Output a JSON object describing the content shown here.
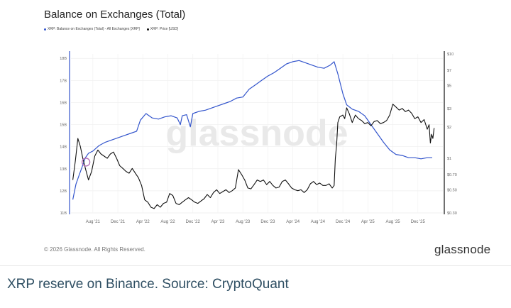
{
  "chart_data": {
    "type": "line",
    "title": "Balance on Exchanges (Total)",
    "watermark": "glassnode",
    "legend": [
      {
        "label": "XRP: Balance on Exchanges (Total) - All Exchanges [XRP]",
        "color": "#3355cc"
      },
      {
        "label": "XRP: Price [USD]",
        "color": "#111111"
      }
    ],
    "x_ticks": [
      "Aug '21",
      "Dec '21",
      "Apr '22",
      "Aug '22",
      "Dec '22",
      "Apr '23",
      "Aug '23",
      "Dec '23",
      "Apr '24",
      "Aug '24",
      "Dec '24",
      "Apr '25",
      "Aug '25",
      "Dec '25"
    ],
    "x_tick_months": [
      19,
      23,
      27,
      31,
      35,
      39,
      43,
      47,
      51,
      55,
      59,
      63,
      67,
      71
    ],
    "x_range_months": [
      15.5,
      75
    ],
    "y_left_ticks": [
      "18B",
      "17B",
      "16B",
      "15B",
      "14B",
      "13B",
      "12B",
      "11B"
    ],
    "y_left_values": [
      18,
      17,
      16,
      15,
      14,
      13,
      12,
      11
    ],
    "y_left_range": [
      11,
      18.2
    ],
    "y_right_ticks": [
      "$10",
      "$7",
      "$5",
      "$3",
      "$2",
      "$1",
      "$0.70",
      "$0.50",
      "$0.30"
    ],
    "y_right_values": [
      10,
      7,
      5,
      3,
      2,
      1,
      0.7,
      0.5,
      0.3
    ],
    "y_right_range": [
      0.3,
      10
    ],
    "y_right_scale": "log",
    "grid": true,
    "legend_position": "top-left",
    "series": [
      {
        "name": "XRP: Balance on Exchanges (Total) - All Exchanges [XRP]",
        "color": "#3355cc",
        "axis": "left",
        "points": [
          [
            15.8,
            11.6
          ],
          [
            16.3,
            12.3
          ],
          [
            16.8,
            12.7
          ],
          [
            17.3,
            13.1
          ],
          [
            17.8,
            13.5
          ],
          [
            18.3,
            13.7
          ],
          [
            19,
            13.8
          ],
          [
            20,
            14.05
          ],
          [
            21,
            14.2
          ],
          [
            22,
            14.3
          ],
          [
            23,
            14.4
          ],
          [
            24,
            14.5
          ],
          [
            25,
            14.6
          ],
          [
            26,
            14.7
          ],
          [
            26.6,
            15.2
          ],
          [
            27.5,
            15.5
          ],
          [
            28.5,
            15.3
          ],
          [
            29.5,
            15.25
          ],
          [
            30.5,
            15.35
          ],
          [
            31.5,
            15.4
          ],
          [
            32.5,
            15.3
          ],
          [
            33,
            15.0
          ],
          [
            33.3,
            15.4
          ],
          [
            34,
            15.45
          ],
          [
            34.6,
            14.9
          ],
          [
            35,
            15.5
          ],
          [
            36,
            15.6
          ],
          [
            37,
            15.65
          ],
          [
            38,
            15.75
          ],
          [
            39,
            15.85
          ],
          [
            40,
            15.95
          ],
          [
            41,
            16.05
          ],
          [
            42,
            16.2
          ],
          [
            43,
            16.25
          ],
          [
            44,
            16.6
          ],
          [
            45,
            16.8
          ],
          [
            46,
            17.0
          ],
          [
            47,
            17.2
          ],
          [
            48,
            17.35
          ],
          [
            49,
            17.55
          ],
          [
            50,
            17.75
          ],
          [
            51,
            17.85
          ],
          [
            52,
            17.9
          ],
          [
            53,
            17.8
          ],
          [
            54,
            17.7
          ],
          [
            55,
            17.6
          ],
          [
            56,
            17.55
          ],
          [
            57,
            17.7
          ],
          [
            57.6,
            17.85
          ],
          [
            58.2,
            17.3
          ],
          [
            59,
            16.4
          ],
          [
            59.6,
            15.9
          ],
          [
            60.5,
            15.7
          ],
          [
            61.5,
            15.6
          ],
          [
            62.5,
            15.4
          ],
          [
            63.5,
            15.0
          ],
          [
            64.5,
            14.6
          ],
          [
            65.5,
            14.2
          ],
          [
            66.5,
            13.85
          ],
          [
            67.5,
            13.65
          ],
          [
            68.5,
            13.6
          ],
          [
            69.5,
            13.5
          ],
          [
            70.5,
            13.5
          ],
          [
            71.5,
            13.45
          ],
          [
            72.5,
            13.5
          ],
          [
            73.3,
            13.5
          ]
        ]
      },
      {
        "name": "XRP: Price [USD]",
        "color": "#111111",
        "axis": "right",
        "points": [
          [
            15.8,
            0.62
          ],
          [
            16.2,
            0.95
          ],
          [
            16.6,
            1.55
          ],
          [
            17.0,
            1.3
          ],
          [
            17.4,
            1.0
          ],
          [
            17.8,
            0.8
          ],
          [
            18.3,
            0.62
          ],
          [
            18.8,
            0.75
          ],
          [
            19.3,
            1.05
          ],
          [
            19.8,
            1.2
          ],
          [
            20.3,
            1.1
          ],
          [
            20.8,
            1.05
          ],
          [
            21.3,
            1.0
          ],
          [
            21.8,
            1.1
          ],
          [
            22.3,
            1.15
          ],
          [
            22.8,
            1.0
          ],
          [
            23.3,
            0.85
          ],
          [
            23.8,
            0.8
          ],
          [
            24.3,
            0.75
          ],
          [
            24.8,
            0.72
          ],
          [
            25.3,
            0.8
          ],
          [
            25.8,
            0.72
          ],
          [
            26.3,
            0.65
          ],
          [
            26.8,
            0.55
          ],
          [
            27.3,
            0.4
          ],
          [
            27.8,
            0.38
          ],
          [
            28.3,
            0.34
          ],
          [
            28.8,
            0.33
          ],
          [
            29.3,
            0.36
          ],
          [
            29.8,
            0.34
          ],
          [
            30.3,
            0.37
          ],
          [
            30.8,
            0.38
          ],
          [
            31.3,
            0.46
          ],
          [
            31.8,
            0.44
          ],
          [
            32.3,
            0.37
          ],
          [
            32.8,
            0.36
          ],
          [
            33.3,
            0.38
          ],
          [
            33.8,
            0.4
          ],
          [
            34.3,
            0.42
          ],
          [
            34.8,
            0.4
          ],
          [
            35.3,
            0.38
          ],
          [
            35.8,
            0.37
          ],
          [
            36.3,
            0.39
          ],
          [
            36.8,
            0.41
          ],
          [
            37.3,
            0.45
          ],
          [
            37.8,
            0.42
          ],
          [
            38.3,
            0.47
          ],
          [
            38.8,
            0.5
          ],
          [
            39.3,
            0.46
          ],
          [
            39.8,
            0.48
          ],
          [
            40.3,
            0.5
          ],
          [
            40.8,
            0.47
          ],
          [
            41.3,
            0.49
          ],
          [
            41.8,
            0.52
          ],
          [
            42.3,
            0.78
          ],
          [
            42.8,
            0.7
          ],
          [
            43.3,
            0.62
          ],
          [
            43.8,
            0.52
          ],
          [
            44.3,
            0.51
          ],
          [
            44.8,
            0.56
          ],
          [
            45.3,
            0.62
          ],
          [
            45.8,
            0.6
          ],
          [
            46.3,
            0.62
          ],
          [
            46.8,
            0.56
          ],
          [
            47.3,
            0.6
          ],
          [
            47.8,
            0.55
          ],
          [
            48.3,
            0.52
          ],
          [
            48.8,
            0.53
          ],
          [
            49.3,
            0.6
          ],
          [
            49.8,
            0.62
          ],
          [
            50.3,
            0.57
          ],
          [
            50.8,
            0.52
          ],
          [
            51.3,
            0.5
          ],
          [
            51.8,
            0.49
          ],
          [
            52.3,
            0.5
          ],
          [
            52.8,
            0.47
          ],
          [
            53.3,
            0.5
          ],
          [
            53.8,
            0.57
          ],
          [
            54.3,
            0.6
          ],
          [
            54.8,
            0.56
          ],
          [
            55.3,
            0.58
          ],
          [
            55.8,
            0.55
          ],
          [
            56.3,
            0.55
          ],
          [
            56.8,
            0.57
          ],
          [
            57.3,
            0.52
          ],
          [
            57.6,
            0.55
          ],
          [
            57.8,
            1.0
          ],
          [
            58.0,
            1.35
          ],
          [
            58.2,
            2.2
          ],
          [
            58.5,
            2.5
          ],
          [
            59.0,
            2.6
          ],
          [
            59.3,
            2.4
          ],
          [
            59.6,
            3.05
          ],
          [
            60.0,
            2.7
          ],
          [
            60.5,
            2.2
          ],
          [
            61.0,
            2.6
          ],
          [
            61.5,
            2.4
          ],
          [
            62.0,
            2.3
          ],
          [
            62.5,
            2.15
          ],
          [
            63.0,
            2.2
          ],
          [
            63.5,
            2.05
          ],
          [
            64.0,
            2.25
          ],
          [
            64.5,
            2.3
          ],
          [
            65.0,
            2.15
          ],
          [
            65.5,
            2.2
          ],
          [
            66.0,
            2.3
          ],
          [
            66.5,
            2.6
          ],
          [
            67.0,
            3.3
          ],
          [
            67.5,
            3.1
          ],
          [
            68.0,
            2.9
          ],
          [
            68.5,
            3.0
          ],
          [
            69.0,
            2.8
          ],
          [
            69.5,
            2.9
          ],
          [
            70.0,
            2.7
          ],
          [
            70.5,
            2.4
          ],
          [
            71.0,
            2.5
          ],
          [
            71.5,
            2.2
          ],
          [
            72.0,
            2.35
          ],
          [
            72.5,
            1.9
          ],
          [
            72.8,
            2.1
          ],
          [
            73.0,
            1.4
          ],
          [
            73.2,
            1.7
          ],
          [
            73.4,
            1.55
          ],
          [
            73.6,
            1.95
          ]
        ]
      }
    ],
    "highlight_circle": {
      "month": 17.9,
      "balance": 13.3,
      "color": "#b06ab3"
    }
  },
  "footer": {
    "copyright": "© 2026 Glassnode. All Rights Reserved.",
    "brand": "glassnode"
  },
  "caption": "XRP reserve on Binance. Source: CryptoQuant"
}
